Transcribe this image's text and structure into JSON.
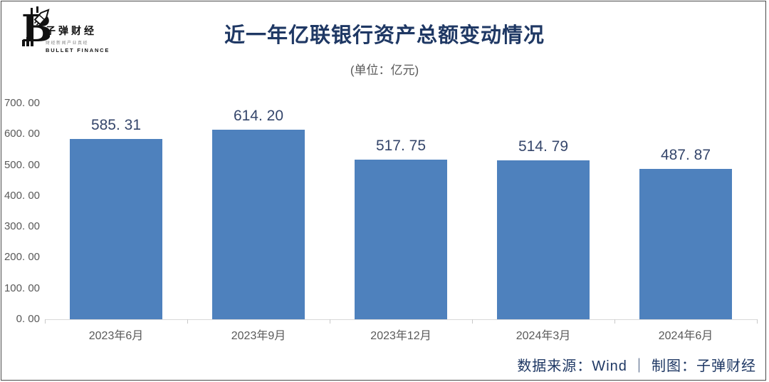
{
  "logo": {
    "brand": "子弹财经",
    "tagline": "财经新闻产业真经",
    "brand_en": "BULLET FINANCE"
  },
  "header": {
    "title": "近一年亿联银行资产总额变动情况",
    "subtitle": "(单位：亿元)"
  },
  "chart_data": {
    "type": "bar",
    "title": "近一年亿联银行资产总额变动情况",
    "unit": "亿元",
    "categories": [
      "2023年6月",
      "2023年9月",
      "2023年12月",
      "2024年3月",
      "2024年6月"
    ],
    "values": [
      585.31,
      614.2,
      517.75,
      514.79,
      487.87
    ],
    "value_labels": [
      "585. 31",
      "614. 20",
      "517. 75",
      "514. 79",
      "487. 87"
    ],
    "y_ticks": [
      "700. 00",
      "600. 00",
      "500. 00",
      "400. 00",
      "300. 00",
      "200. 00",
      "100. 00",
      "0. 00"
    ],
    "ylim": [
      0,
      700
    ],
    "grid": false,
    "legend": "none",
    "bar_color": "#4E81BD"
  },
  "footer": {
    "source": "数据来源：Wind ｜ 制图：子弹财经"
  },
  "colors": {
    "title": "#1F3864",
    "axis_text": "#595959",
    "data_label": "#35466B",
    "axis_line": "#d9d9d9"
  }
}
